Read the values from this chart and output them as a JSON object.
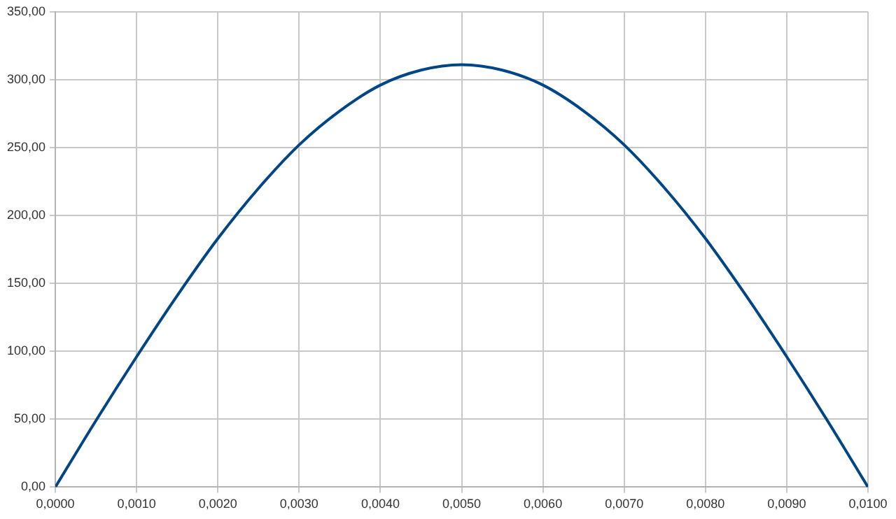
{
  "chart_data": {
    "type": "line",
    "x": [
      0,
      0.0005,
      0.001,
      0.0015,
      0.002,
      0.0025,
      0.003,
      0.0035,
      0.004,
      0.0045,
      0.005,
      0.0055,
      0.006,
      0.0065,
      0.007,
      0.0075,
      0.008,
      0.0085,
      0.009,
      0.0095,
      0.01
    ],
    "series": [
      {
        "color": "#004586",
        "values": [
          0,
          49,
          96,
          141,
          183,
          220,
          252,
          277,
          296,
          307,
          311,
          307,
          296,
          277,
          252,
          220,
          183,
          141,
          96,
          49,
          0
        ]
      }
    ],
    "xlim": [
      0,
      0.01
    ],
    "xticks": [
      {
        "value": 0,
        "label": "0,0000"
      },
      {
        "value": 0.001,
        "label": "0,0010"
      },
      {
        "value": 0.002,
        "label": "0,0020"
      },
      {
        "value": 0.003,
        "label": "0,0030"
      },
      {
        "value": 0.004,
        "label": "0,0040"
      },
      {
        "value": 0.005,
        "label": "0,0050"
      },
      {
        "value": 0.006,
        "label": "0,0060"
      },
      {
        "value": 0.007,
        "label": "0,0070"
      },
      {
        "value": 0.008,
        "label": "0,0080"
      },
      {
        "value": 0.009,
        "label": "0,0090"
      },
      {
        "value": 0.01,
        "label": "0,0100"
      }
    ],
    "ylim": [
      0,
      350
    ],
    "yticks": [
      {
        "value": 0,
        "label": "0,00"
      },
      {
        "value": 50,
        "label": "50,00"
      },
      {
        "value": 100,
        "label": "100,00"
      },
      {
        "value": 150,
        "label": "150,00"
      },
      {
        "value": 200,
        "label": "200,00"
      },
      {
        "value": 250,
        "label": "250,00"
      },
      {
        "value": 300,
        "label": "300,00"
      },
      {
        "value": 350,
        "label": "350,00"
      }
    ],
    "grid": true,
    "legend": false,
    "marker": "none",
    "line_style": "solid"
  }
}
